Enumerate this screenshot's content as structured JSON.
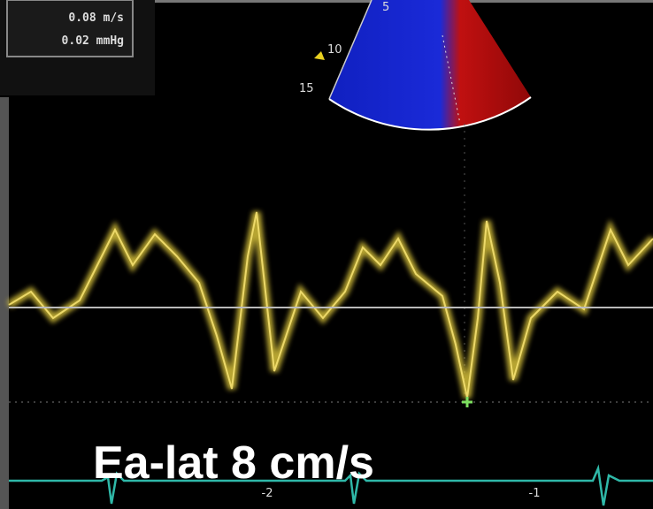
{
  "header": {
    "velocity": "0.08 m/s",
    "pressure": "0.02 mmHg"
  },
  "sector": {
    "depth_labels": [
      "5",
      "10",
      "15"
    ]
  },
  "time_labels": [
    "-2",
    "-1"
  ],
  "caption": "Ea-lat 8 cm/s"
}
